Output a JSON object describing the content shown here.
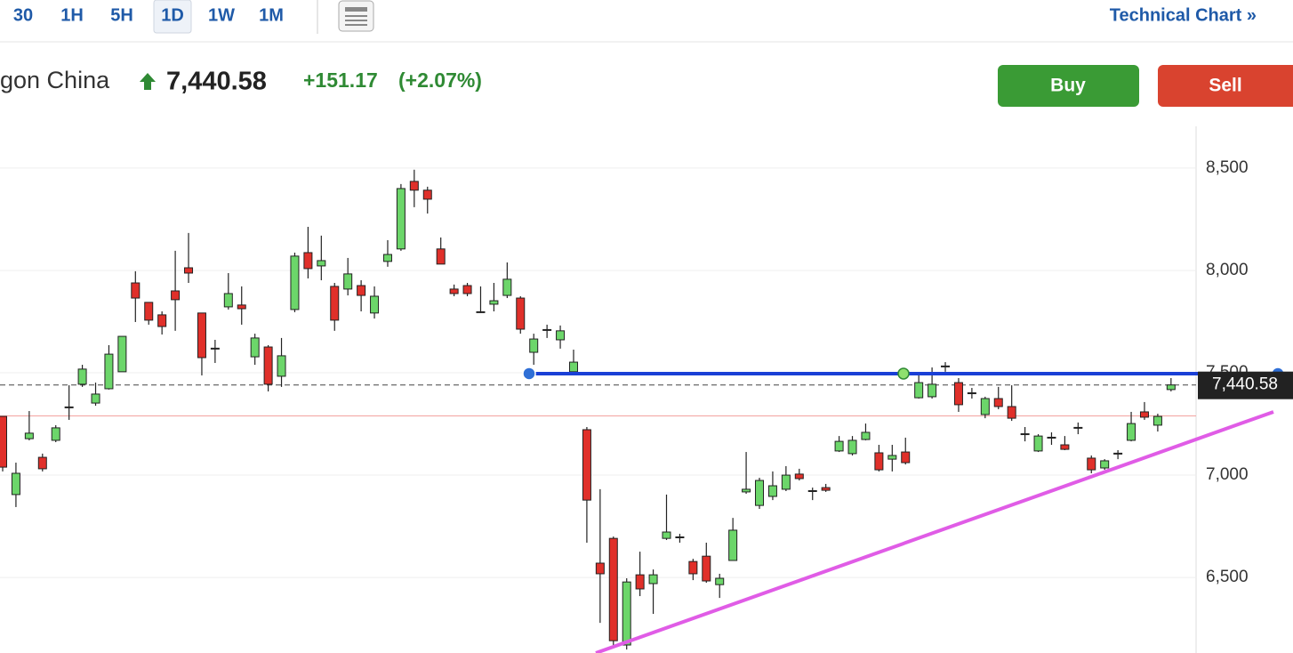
{
  "toolbar": {
    "intervals": [
      "30",
      "1H",
      "5H",
      "1D",
      "1W",
      "1M"
    ],
    "selected_index": 3,
    "link": "Technical Chart »"
  },
  "header": {
    "name": "gon China",
    "price": "7,440.58",
    "change": "+151.17",
    "change_percent": "(+2.07%)"
  },
  "buttons": [
    "Buy",
    "Sell"
  ],
  "chart_data": {
    "type": "candlestick",
    "open": [
      7287,
      6905,
      7178,
      7087,
      7170,
      7331,
      7444,
      7352,
      7422,
      7505,
      7939,
      7844,
      7783,
      7900,
      8013,
      7792,
      7618,
      7822,
      7831,
      7578,
      7626,
      7483,
      7809,
      8087,
      8022,
      7922,
      7909,
      7926,
      7792,
      8044,
      8105,
      8435,
      8392,
      8105,
      7909,
      7926,
      7796,
      7835,
      7878,
      7865,
      7600,
      7709,
      7661,
      7505,
      7222,
      6570,
      6691,
      6170,
      6513,
      6470,
      6691,
      6696,
      6578,
      6604,
      6465,
      6583,
      6918,
      6852,
      6896,
      6931,
      7005,
      6922,
      6939,
      7118,
      7105,
      7174,
      7109,
      7078,
      7113,
      7378,
      7383,
      7531,
      7452,
      7400,
      7296,
      7374,
      7335,
      7200,
      7118,
      7183,
      7148,
      7231,
      7083,
      7035,
      7105,
      7170,
      7309,
      7244,
      7418
    ],
    "high": [
      7287,
      7061,
      7313,
      7105,
      7244,
      7439,
      7539,
      7452,
      7635,
      7678,
      7996,
      7844,
      7800,
      8096,
      8183,
      7792,
      7661,
      7987,
      7922,
      7691,
      7635,
      7670,
      8087,
      8213,
      8170,
      7939,
      8061,
      7952,
      7922,
      8148,
      8422,
      8492,
      8409,
      8161,
      7931,
      7939,
      7922,
      7939,
      8039,
      7874,
      7691,
      7735,
      7731,
      7613,
      7235,
      6931,
      6700,
      6496,
      6626,
      6539,
      6905,
      6713,
      6591,
      6670,
      6518,
      6791,
      7113,
      6987,
      7018,
      7044,
      7031,
      6939,
      6957,
      7191,
      7191,
      7252,
      7148,
      7148,
      7183,
      7496,
      7526,
      7552,
      7474,
      7426,
      7383,
      7431,
      7439,
      7235,
      7200,
      7209,
      7191,
      7257,
      7096,
      7078,
      7122,
      7309,
      7357,
      7300,
      7474
    ],
    "low": [
      7018,
      6844,
      7170,
      7018,
      7161,
      7270,
      7431,
      7339,
      7418,
      7505,
      7748,
      7735,
      7687,
      7705,
      7939,
      7487,
      7548,
      7809,
      7735,
      7539,
      7409,
      7431,
      7796,
      7961,
      7952,
      7705,
      7878,
      7800,
      7765,
      8018,
      8096,
      8309,
      8278,
      8031,
      7874,
      7874,
      7792,
      7800,
      7865,
      7691,
      7539,
      7670,
      7618,
      7496,
      6670,
      6278,
      6170,
      6148,
      6409,
      6322,
      6683,
      6670,
      6487,
      6474,
      6400,
      6583,
      6909,
      6835,
      6878,
      6922,
      6974,
      6878,
      6918,
      7113,
      7096,
      7170,
      7018,
      7018,
      7052,
      7374,
      7374,
      7505,
      7309,
      7374,
      7278,
      7322,
      7265,
      7165,
      7113,
      7148,
      7122,
      7200,
      7009,
      7026,
      7078,
      7165,
      7270,
      7213,
      7409
    ],
    "close": [
      7039,
      7009,
      7205,
      7031,
      7231,
      7331,
      7518,
      7396,
      7591,
      7678,
      7865,
      7757,
      7726,
      7857,
      7987,
      7574,
      7618,
      7887,
      7813,
      7670,
      7444,
      7583,
      8070,
      8009,
      8048,
      7757,
      7983,
      7878,
      7874,
      8078,
      8400,
      8392,
      8348,
      8031,
      7887,
      7887,
      7796,
      7852,
      7957,
      7713,
      7665,
      7709,
      7705,
      7552,
      6878,
      6518,
      6191,
      6478,
      6444,
      6513,
      6722,
      6696,
      6518,
      6483,
      6496,
      6731,
      6931,
      6974,
      6948,
      7000,
      6983,
      6922,
      6926,
      7165,
      7170,
      7209,
      7026,
      7096,
      7061,
      7452,
      7444,
      7531,
      7344,
      7400,
      7374,
      7335,
      7278,
      7200,
      7191,
      7183,
      7126,
      7231,
      7026,
      7070,
      7105,
      7252,
      7283,
      7287,
      7440.58
    ],
    "up_color": "#6cd66a",
    "down_color": "#e0302a",
    "ylim": [
      6131,
      8704
    ],
    "yticks": [
      {
        "value": 6500,
        "label": "6,500"
      },
      {
        "value": 7000,
        "label": "7,000"
      },
      {
        "value": 7500,
        "label": "7,500"
      },
      {
        "value": 8000,
        "label": "8,000"
      },
      {
        "value": 8500,
        "label": "8,500"
      }
    ],
    "grid": true,
    "last_price_label": "7,440.58",
    "previous_close": 7289.41,
    "horizontal_line": {
      "value": 7496,
      "color": "#1a3fd6"
    },
    "trend_line": {
      "values": [
        6131,
        7309
      ],
      "color": "#e05ce6"
    }
  }
}
